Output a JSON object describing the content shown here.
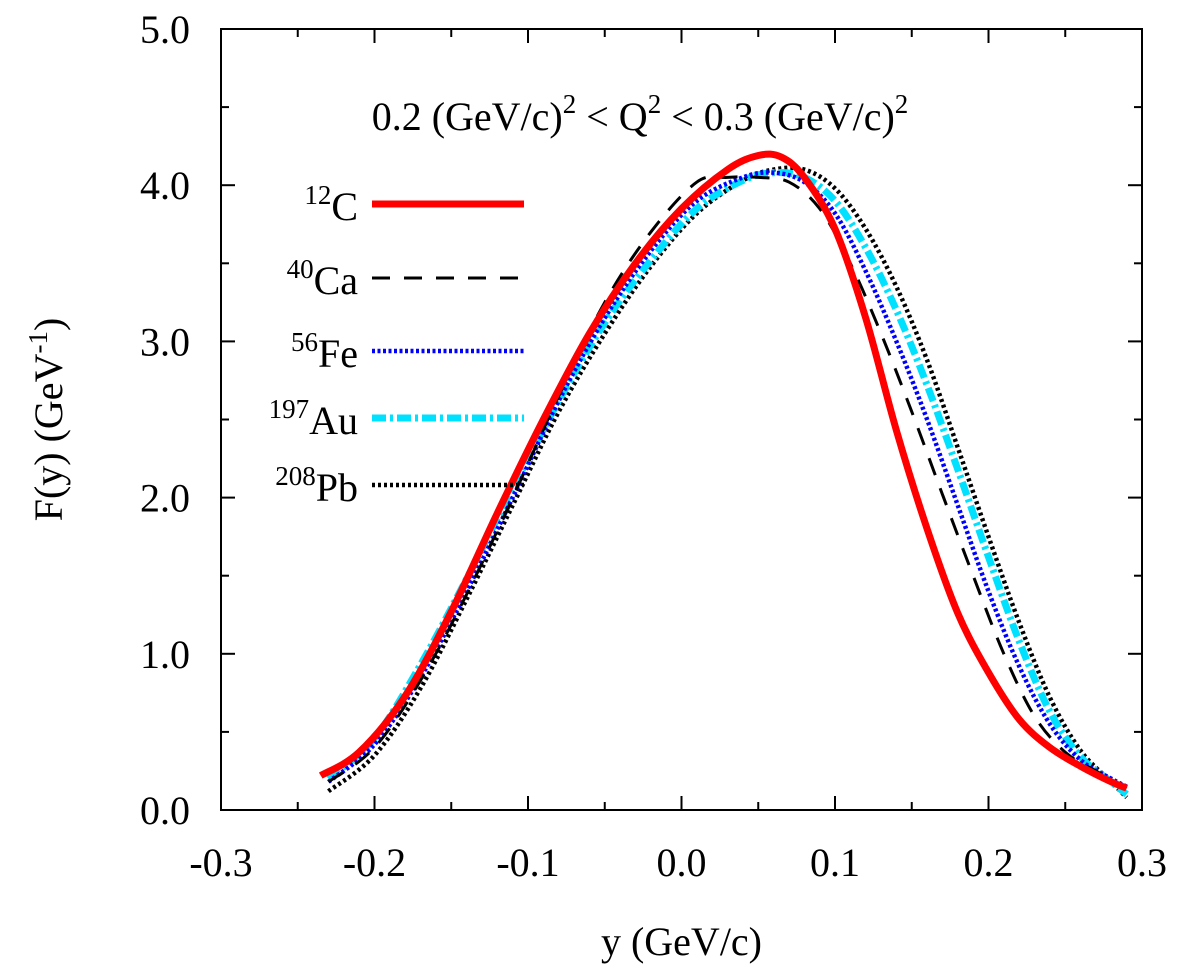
{
  "chart_data": {
    "type": "line",
    "xlabel": "y (GeV/c)",
    "ylabel": "F(y) (GeV^-1)",
    "ylabel_parts": {
      "main": "F(y) (GeV",
      "sup": "-1",
      "end": ")"
    },
    "annotation": {
      "parts": [
        "0.2 (GeV/c)",
        "2",
        " < Q",
        "2",
        " < 0.3 (GeV/c)",
        "2"
      ]
    },
    "xlim": [
      -0.3,
      0.3
    ],
    "ylim": [
      0.0,
      5.0
    ],
    "x_ticks": [
      -0.3,
      -0.2,
      -0.1,
      0.0,
      0.1,
      0.2,
      0.3
    ],
    "x_tick_labels": [
      "-0.3",
      "-0.2",
      "-0.1",
      "0.0",
      "0.1",
      "0.2",
      "0.3"
    ],
    "y_ticks": [
      0.0,
      1.0,
      2.0,
      3.0,
      4.0,
      5.0
    ],
    "y_tick_labels": [
      "0.0",
      "1.0",
      "2.0",
      "3.0",
      "4.0",
      "5.0"
    ],
    "grid": false,
    "legend_position": "top-left",
    "series": [
      {
        "name": "12C",
        "sup": "12",
        "base": "C",
        "color": "#ff0000",
        "style": "solid",
        "x": [
          -0.235,
          -0.21,
          -0.18,
          -0.15,
          -0.12,
          -0.09,
          -0.06,
          -0.03,
          0.0,
          0.03,
          0.05,
          0.065,
          0.08,
          0.1,
          0.12,
          0.14,
          0.16,
          0.18,
          0.2,
          0.22,
          0.24,
          0.26,
          0.28,
          0.29
        ],
        "y": [
          0.22,
          0.37,
          0.73,
          1.27,
          1.9,
          2.5,
          3.05,
          3.5,
          3.85,
          4.1,
          4.19,
          4.18,
          4.05,
          3.72,
          3.15,
          2.43,
          1.8,
          1.26,
          0.88,
          0.58,
          0.4,
          0.28,
          0.18,
          0.14
        ]
      },
      {
        "name": "40Ca",
        "sup": "40",
        "base": "Ca",
        "color": "#000000",
        "style": "dashed",
        "x": [
          -0.23,
          -0.2,
          -0.17,
          -0.14,
          -0.11,
          -0.08,
          -0.05,
          -0.02,
          0.01,
          0.03,
          0.05,
          0.07,
          0.09,
          0.11,
          0.13,
          0.15,
          0.17,
          0.19,
          0.21,
          0.23,
          0.25,
          0.27,
          0.29
        ],
        "y": [
          0.18,
          0.4,
          0.83,
          1.38,
          2.0,
          2.65,
          3.25,
          3.7,
          4.02,
          4.05,
          4.05,
          4.02,
          3.85,
          3.5,
          3.05,
          2.55,
          2.02,
          1.5,
          1.0,
          0.6,
          0.37,
          0.25,
          0.14
        ]
      },
      {
        "name": "56Fe",
        "sup": "56",
        "base": "Fe",
        "color": "#0000ff",
        "style": "dotted",
        "x": [
          -0.23,
          -0.2,
          -0.17,
          -0.14,
          -0.11,
          -0.08,
          -0.05,
          -0.02,
          0.01,
          0.04,
          0.06,
          0.08,
          0.1,
          0.12,
          0.14,
          0.16,
          0.18,
          0.2,
          0.22,
          0.24,
          0.26,
          0.28,
          0.29
        ],
        "y": [
          0.18,
          0.42,
          0.85,
          1.4,
          2.0,
          2.62,
          3.15,
          3.58,
          3.9,
          4.05,
          4.08,
          4.02,
          3.82,
          3.45,
          3.0,
          2.5,
          1.95,
          1.4,
          0.92,
          0.55,
          0.32,
          0.2,
          0.15
        ]
      },
      {
        "name": "197Au",
        "sup": "197",
        "base": "Au",
        "color": "#00e0ff",
        "style": "dashdot",
        "x": [
          -0.23,
          -0.2,
          -0.17,
          -0.14,
          -0.11,
          -0.08,
          -0.05,
          -0.02,
          0.01,
          0.04,
          0.06,
          0.08,
          0.1,
          0.12,
          0.14,
          0.16,
          0.18,
          0.2,
          0.22,
          0.24,
          0.26,
          0.28,
          0.29
        ],
        "y": [
          0.2,
          0.46,
          0.93,
          1.48,
          2.06,
          2.62,
          3.12,
          3.52,
          3.85,
          4.03,
          4.08,
          4.05,
          3.9,
          3.6,
          3.2,
          2.72,
          2.18,
          1.62,
          1.08,
          0.63,
          0.34,
          0.18,
          0.1
        ]
      },
      {
        "name": "208Pb",
        "sup": "208",
        "base": "Pb",
        "color": "#000000",
        "style": "dense-dotted",
        "x": [
          -0.23,
          -0.2,
          -0.17,
          -0.14,
          -0.11,
          -0.08,
          -0.05,
          -0.02,
          0.01,
          0.04,
          0.06,
          0.08,
          0.1,
          0.12,
          0.14,
          0.16,
          0.18,
          0.2,
          0.22,
          0.24,
          0.26,
          0.28,
          0.29
        ],
        "y": [
          0.12,
          0.35,
          0.78,
          1.35,
          1.95,
          2.55,
          3.05,
          3.48,
          3.82,
          4.03,
          4.1,
          4.1,
          3.98,
          3.72,
          3.35,
          2.88,
          2.32,
          1.75,
          1.2,
          0.72,
          0.38,
          0.18,
          0.08
        ]
      }
    ]
  }
}
